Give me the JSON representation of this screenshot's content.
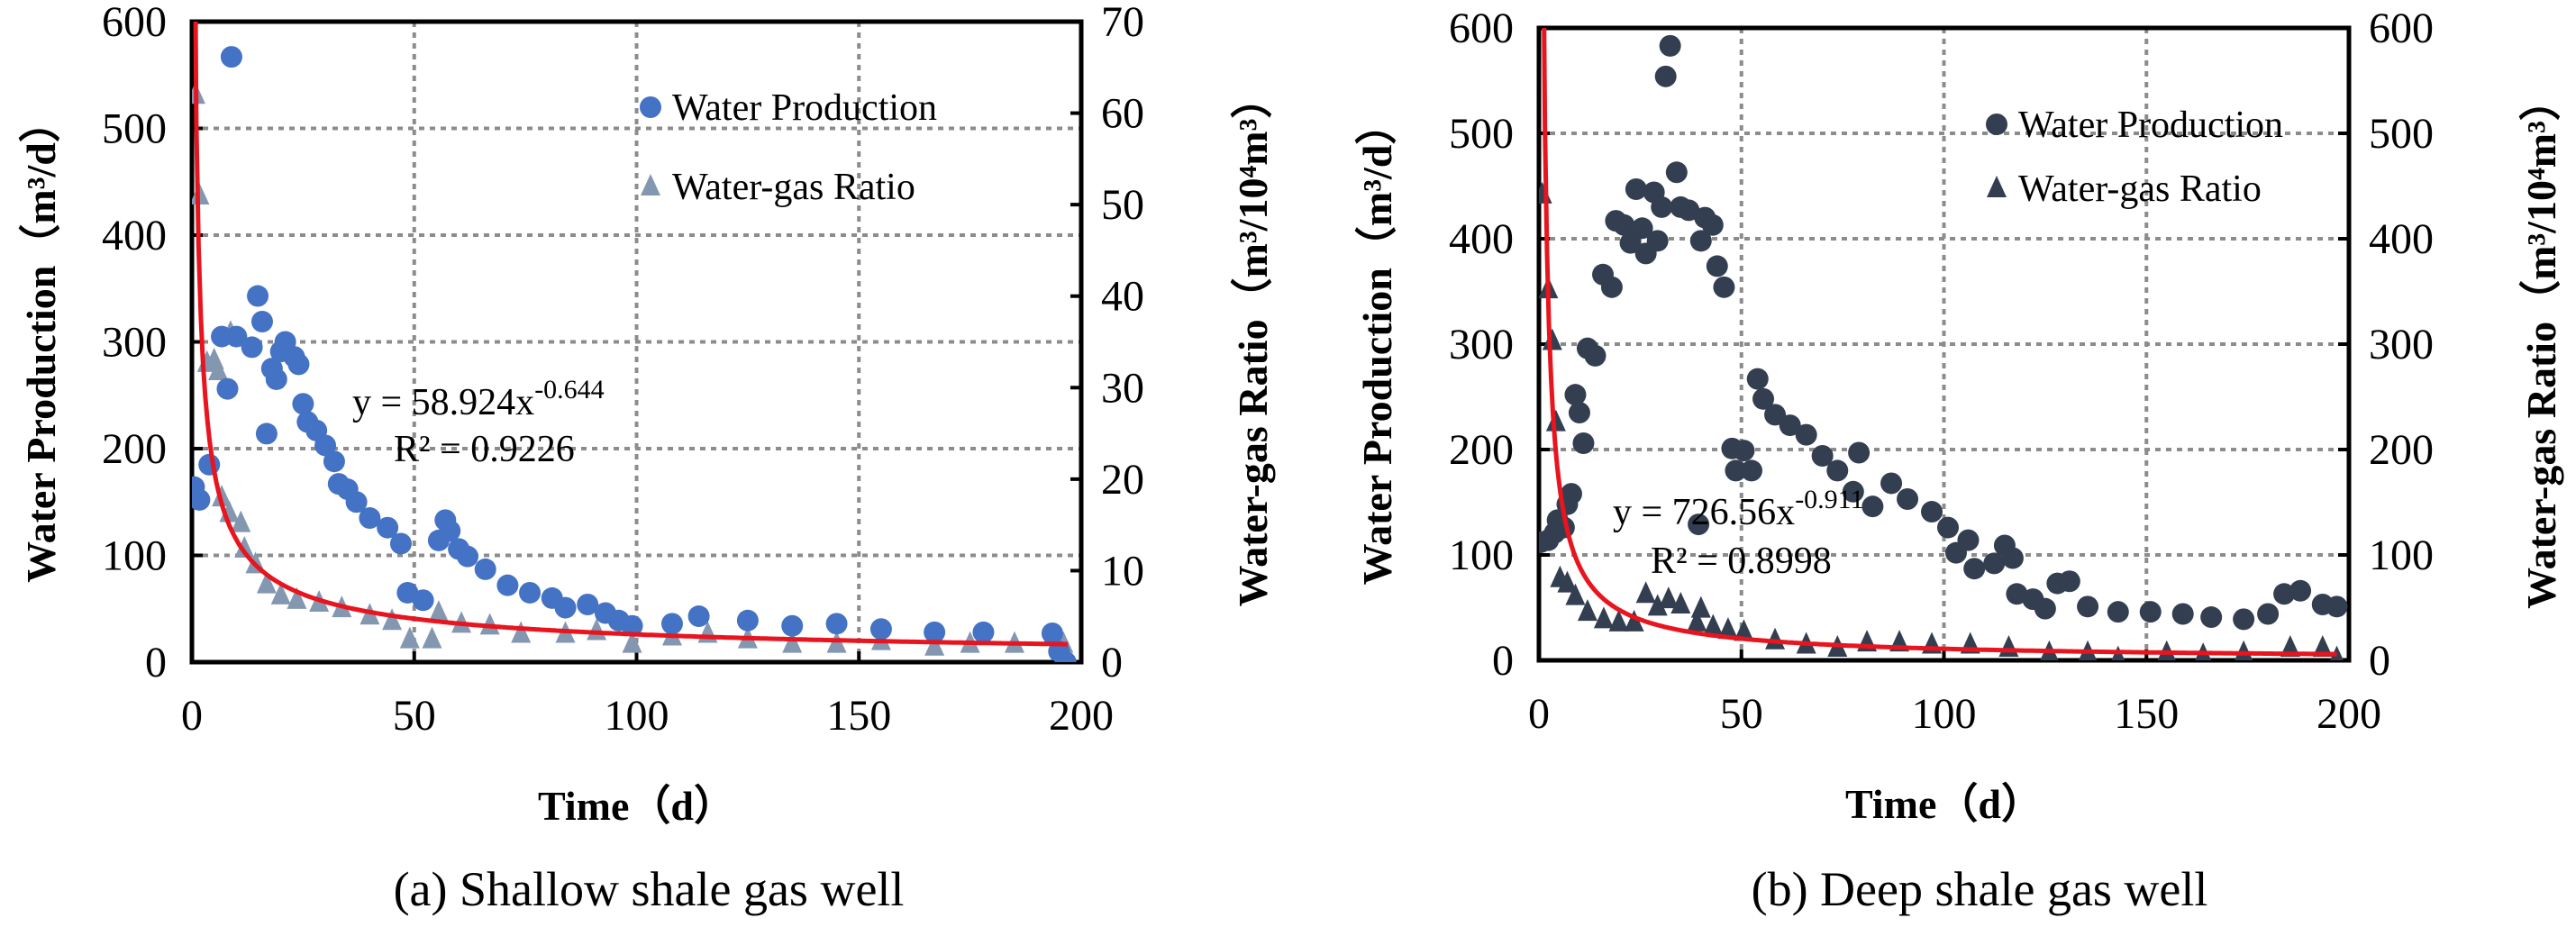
{
  "chart_data": [
    {
      "type": "scatter",
      "caption": "(a) Shallow shale gas well",
      "xlabel": "Time（d）",
      "ylabel": "Water Production（m³/d）",
      "y2label": "Water-gas Ratio（m³/10⁴m³）",
      "xlim": [
        0,
        200
      ],
      "ylim": [
        0,
        600
      ],
      "y2lim": [
        0,
        70
      ],
      "xticks": [
        0,
        50,
        100,
        150,
        200
      ],
      "yticks": [
        0,
        100,
        200,
        300,
        400,
        500,
        600
      ],
      "y2ticks": [
        0,
        10,
        20,
        30,
        40,
        50,
        60,
        70
      ],
      "grid": true,
      "legend_placement": "top-right",
      "series": [
        {
          "name": "Water Production",
          "axis": "left",
          "marker": "circle",
          "color": "#4472C4",
          "x": [
            0.5,
            1.7,
            3.9,
            8.9,
            6.7,
            8,
            10,
            13.5,
            14.8,
            15.8,
            16.8,
            18,
            19,
            20,
            21,
            23,
            24,
            25,
            26,
            28,
            30,
            32,
            33,
            35,
            37,
            40,
            44,
            47,
            48.5,
            52,
            55.5,
            57,
            58,
            60,
            62,
            66,
            71,
            76,
            81,
            84,
            89,
            93,
            96,
            99,
            108,
            114,
            125,
            135,
            145,
            155,
            167,
            178,
            193.5,
            195,
            196.5
          ],
          "y": [
            164,
            152,
            185,
            567,
            305,
            256,
            305,
            295,
            343,
            319,
            214,
            275,
            265,
            291,
            300,
            286,
            279,
            242,
            225,
            217,
            203,
            188,
            167,
            162,
            150,
            135,
            126,
            111,
            65,
            58,
            114,
            133,
            123,
            106,
            99,
            87,
            72,
            65,
            60,
            51,
            54,
            46,
            39,
            34,
            36,
            43,
            39,
            34,
            36,
            31,
            28,
            28,
            27,
            10,
            0
          ]
        },
        {
          "name": "Water-gas Ratio",
          "axis": "right",
          "marker": "triangle",
          "color": "#8497B0",
          "x": [
            0.8,
            1.7,
            8.7,
            3.4,
            5,
            5.9,
            6.7,
            8.4,
            11,
            11.8,
            14.3,
            16.8,
            20,
            23.6,
            28.6,
            33.7,
            40,
            45,
            49,
            54,
            55.5,
            60.6,
            67,
            74,
            84,
            91,
            99,
            108,
            116,
            125,
            135,
            145,
            155,
            167,
            175,
            185,
            193.5,
            196
          ],
          "y": [
            62,
            51,
            36,
            32.7,
            33,
            31.8,
            18,
            16.3,
            15.2,
            12.4,
            10.7,
            8.5,
            7.3,
            6.8,
            6.5,
            5.9,
            5.1,
            4.5,
            2.5,
            2.5,
            5.4,
            4.2,
            4,
            3.1,
            3.1,
            3.4,
            2,
            2.8,
            3.1,
            2.5,
            2,
            2,
            2.3,
            1.7,
            2,
            2,
            2.8,
            2
          ]
        }
      ],
      "fit": {
        "axis": "right",
        "a": 58.924,
        "b": -0.644,
        "color": "#E8141E",
        "eq_prefix": "y = 58.924x",
        "eq_exp": "-0.644",
        "r2": "R² = 0.9226"
      }
    },
    {
      "type": "scatter",
      "caption": "(b) Deep shale gas well",
      "xlabel": "Time（d）",
      "ylabel": "Water Production（m³/d）",
      "y2label": "Water-gas Ratio（m³/10⁴m³）",
      "xlim": [
        0,
        200
      ],
      "ylim": [
        0,
        600
      ],
      "y2lim": [
        0,
        600
      ],
      "xticks": [
        0,
        50,
        100,
        150,
        200
      ],
      "yticks": [
        0,
        100,
        200,
        300,
        400,
        500,
        600
      ],
      "y2ticks": [
        0,
        100,
        200,
        300,
        400,
        500,
        600
      ],
      "grid": true,
      "legend_placement": "top-right",
      "series": [
        {
          "name": "Water Production",
          "axis": "left",
          "marker": "circle",
          "color": "#333F50",
          "x": [
            0.4,
            2.3,
            3.9,
            4.6,
            6.2,
            7,
            8,
            9,
            10,
            11,
            12,
            13.9,
            15.8,
            18,
            19,
            21,
            22.6,
            24,
            25.5,
            26.4,
            28.4,
            29.3,
            30.3,
            31.3,
            32.4,
            34,
            35,
            37,
            40,
            41,
            42.9,
            44,
            45.7,
            39.4,
            47.7,
            48.6,
            50.6,
            52.5,
            54,
            55.4,
            58.3,
            62,
            66,
            70,
            73.7,
            77.6,
            79,
            82.4,
            87,
            91,
            97,
            101,
            103,
            106,
            107.5,
            112.4,
            115,
            117,
            118,
            122,
            125,
            128,
            131,
            135.5,
            143,
            151,
            159,
            166,
            174,
            180,
            184,
            188,
            193.5,
            197
          ],
          "y": [
            112,
            114,
            121,
            133,
            126,
            148,
            158,
            252,
            235,
            206,
            296,
            289,
            366,
            354,
            417,
            413,
            396,
            447,
            410,
            386,
            444,
            398,
            430,
            554,
            583,
            463,
            430,
            427,
            398,
            420,
            413,
            374,
            354,
            129,
            201,
            180,
            199,
            180,
            267,
            248,
            233,
            223,
            214,
            194,
            180,
            160,
            197,
            146,
            168,
            153,
            141,
            126,
            102,
            114,
            87,
            92,
            109,
            97,
            63,
            58,
            49,
            73,
            75,
            51,
            46,
            46,
            44,
            41,
            39,
            44,
            63,
            66,
            53,
            51
          ]
        },
        {
          "name": "Water-gas Ratio",
          "axis": "right",
          "marker": "triangle",
          "color": "#333F50",
          "x": [
            0.8,
            2.3,
            3.3,
            4.2,
            5.2,
            7,
            9,
            12,
            16,
            19.7,
            23.5,
            26.4,
            29.3,
            32,
            35,
            39,
            40,
            43,
            46.7,
            50.6,
            58.3,
            66,
            73.7,
            81,
            89,
            97,
            106.5,
            116,
            126,
            135.5,
            143,
            155,
            164,
            174,
            185.5,
            193.5,
            197
          ],
          "y": [
            442,
            352,
            303,
            226,
            78,
            73,
            61,
            46,
            39,
            36,
            36,
            63,
            51,
            58,
            53,
            36,
            49,
            32,
            29,
            27,
            19,
            15,
            12,
            17,
            17,
            15,
            15,
            12,
            7,
            7,
            2,
            7,
            5,
            7,
            12,
            12,
            2
          ]
        }
      ],
      "fit": {
        "axis": "right",
        "a": 726.56,
        "b": -0.911,
        "color": "#E8141E",
        "eq_prefix": "y = 726.56x",
        "eq_exp": "-0.911",
        "r2": "R² = 0.8998"
      }
    }
  ]
}
